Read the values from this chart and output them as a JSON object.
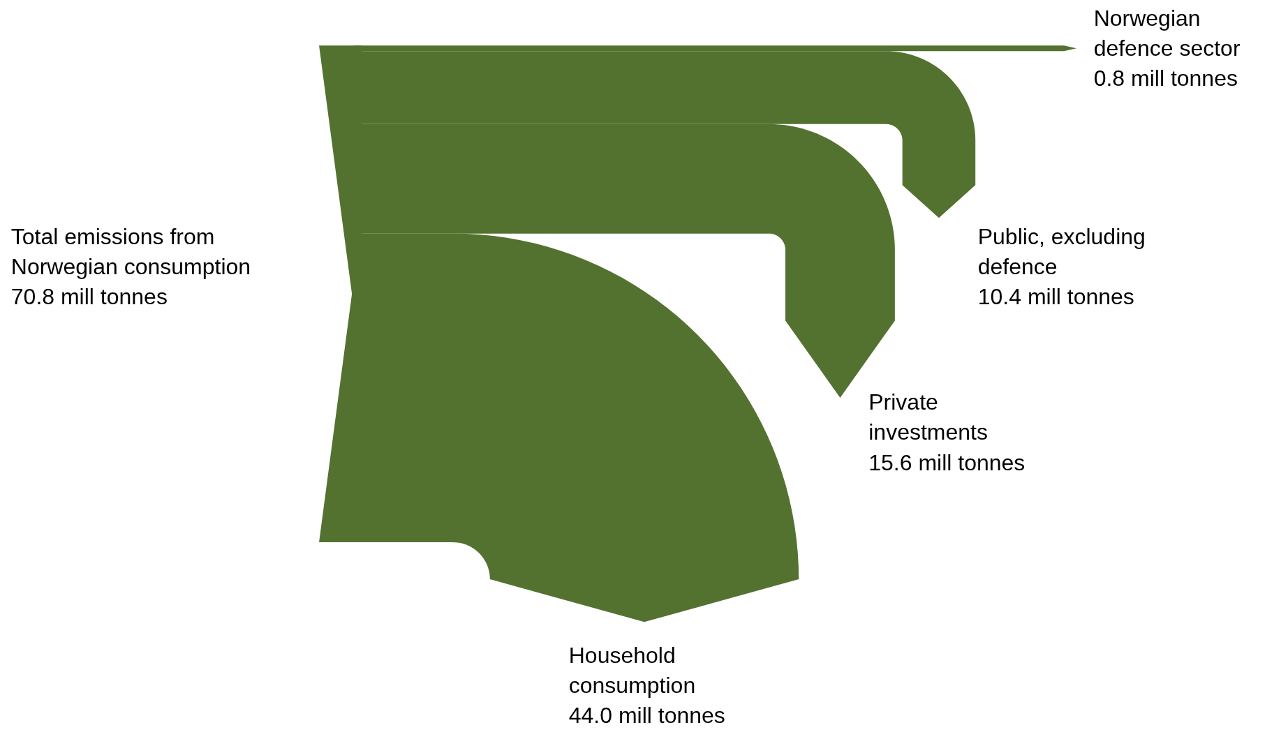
{
  "chart_data": {
    "type": "other",
    "categories": [
      "Total emissions from\nNorwegian consumption",
      "Household\nconsumption",
      "Private\ninvestments",
      "Public, excluding\ndefence",
      "Norwegian\ndefence sector"
    ],
    "values": [
      70.8,
      44.0,
      15.6,
      10.4,
      0.8
    ],
    "value_labels": [
      "70.8 mill tonnes",
      "44.0 mill tonnes",
      "15.6 mill tonnes",
      "10.4 mill tonnes",
      "0.8 mill tonnes"
    ],
    "color": "#537230"
  }
}
